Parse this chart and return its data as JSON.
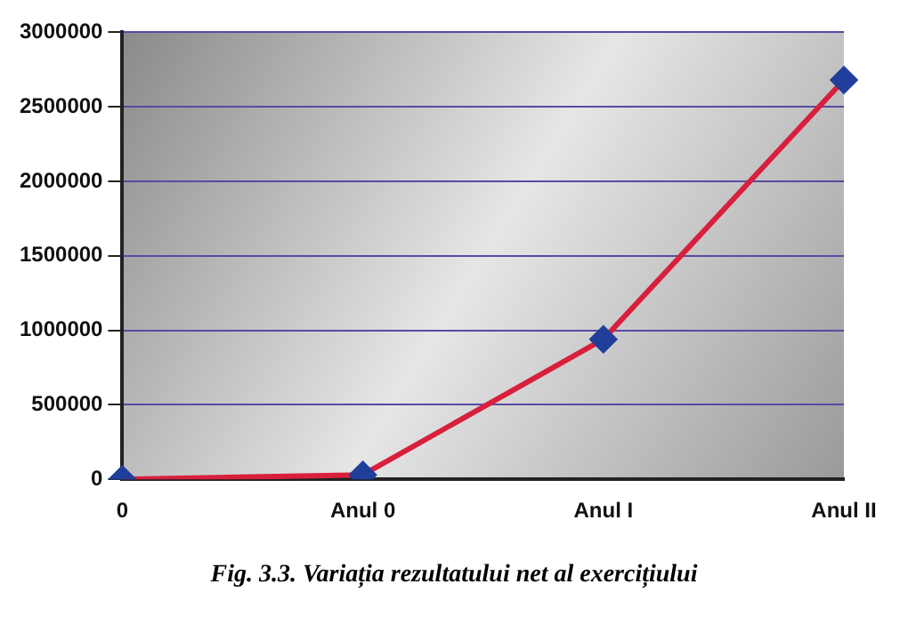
{
  "chart_data": {
    "type": "line",
    "title": "Fig. 3.3. Variația rezultatului net al exercițiului",
    "categories": [
      "0",
      "Anul 0",
      "Anul I",
      "Anul II"
    ],
    "series": [
      {
        "color": "#d8203c",
        "values": [
          0,
          30000,
          940000,
          2680000
        ]
      }
    ],
    "marker": "diamond",
    "ylim": [
      0,
      3000000
    ],
    "yticks": [
      0,
      500000,
      1000000,
      1500000,
      2000000,
      2500000,
      3000000
    ],
    "grid": "y",
    "legend": false
  }
}
